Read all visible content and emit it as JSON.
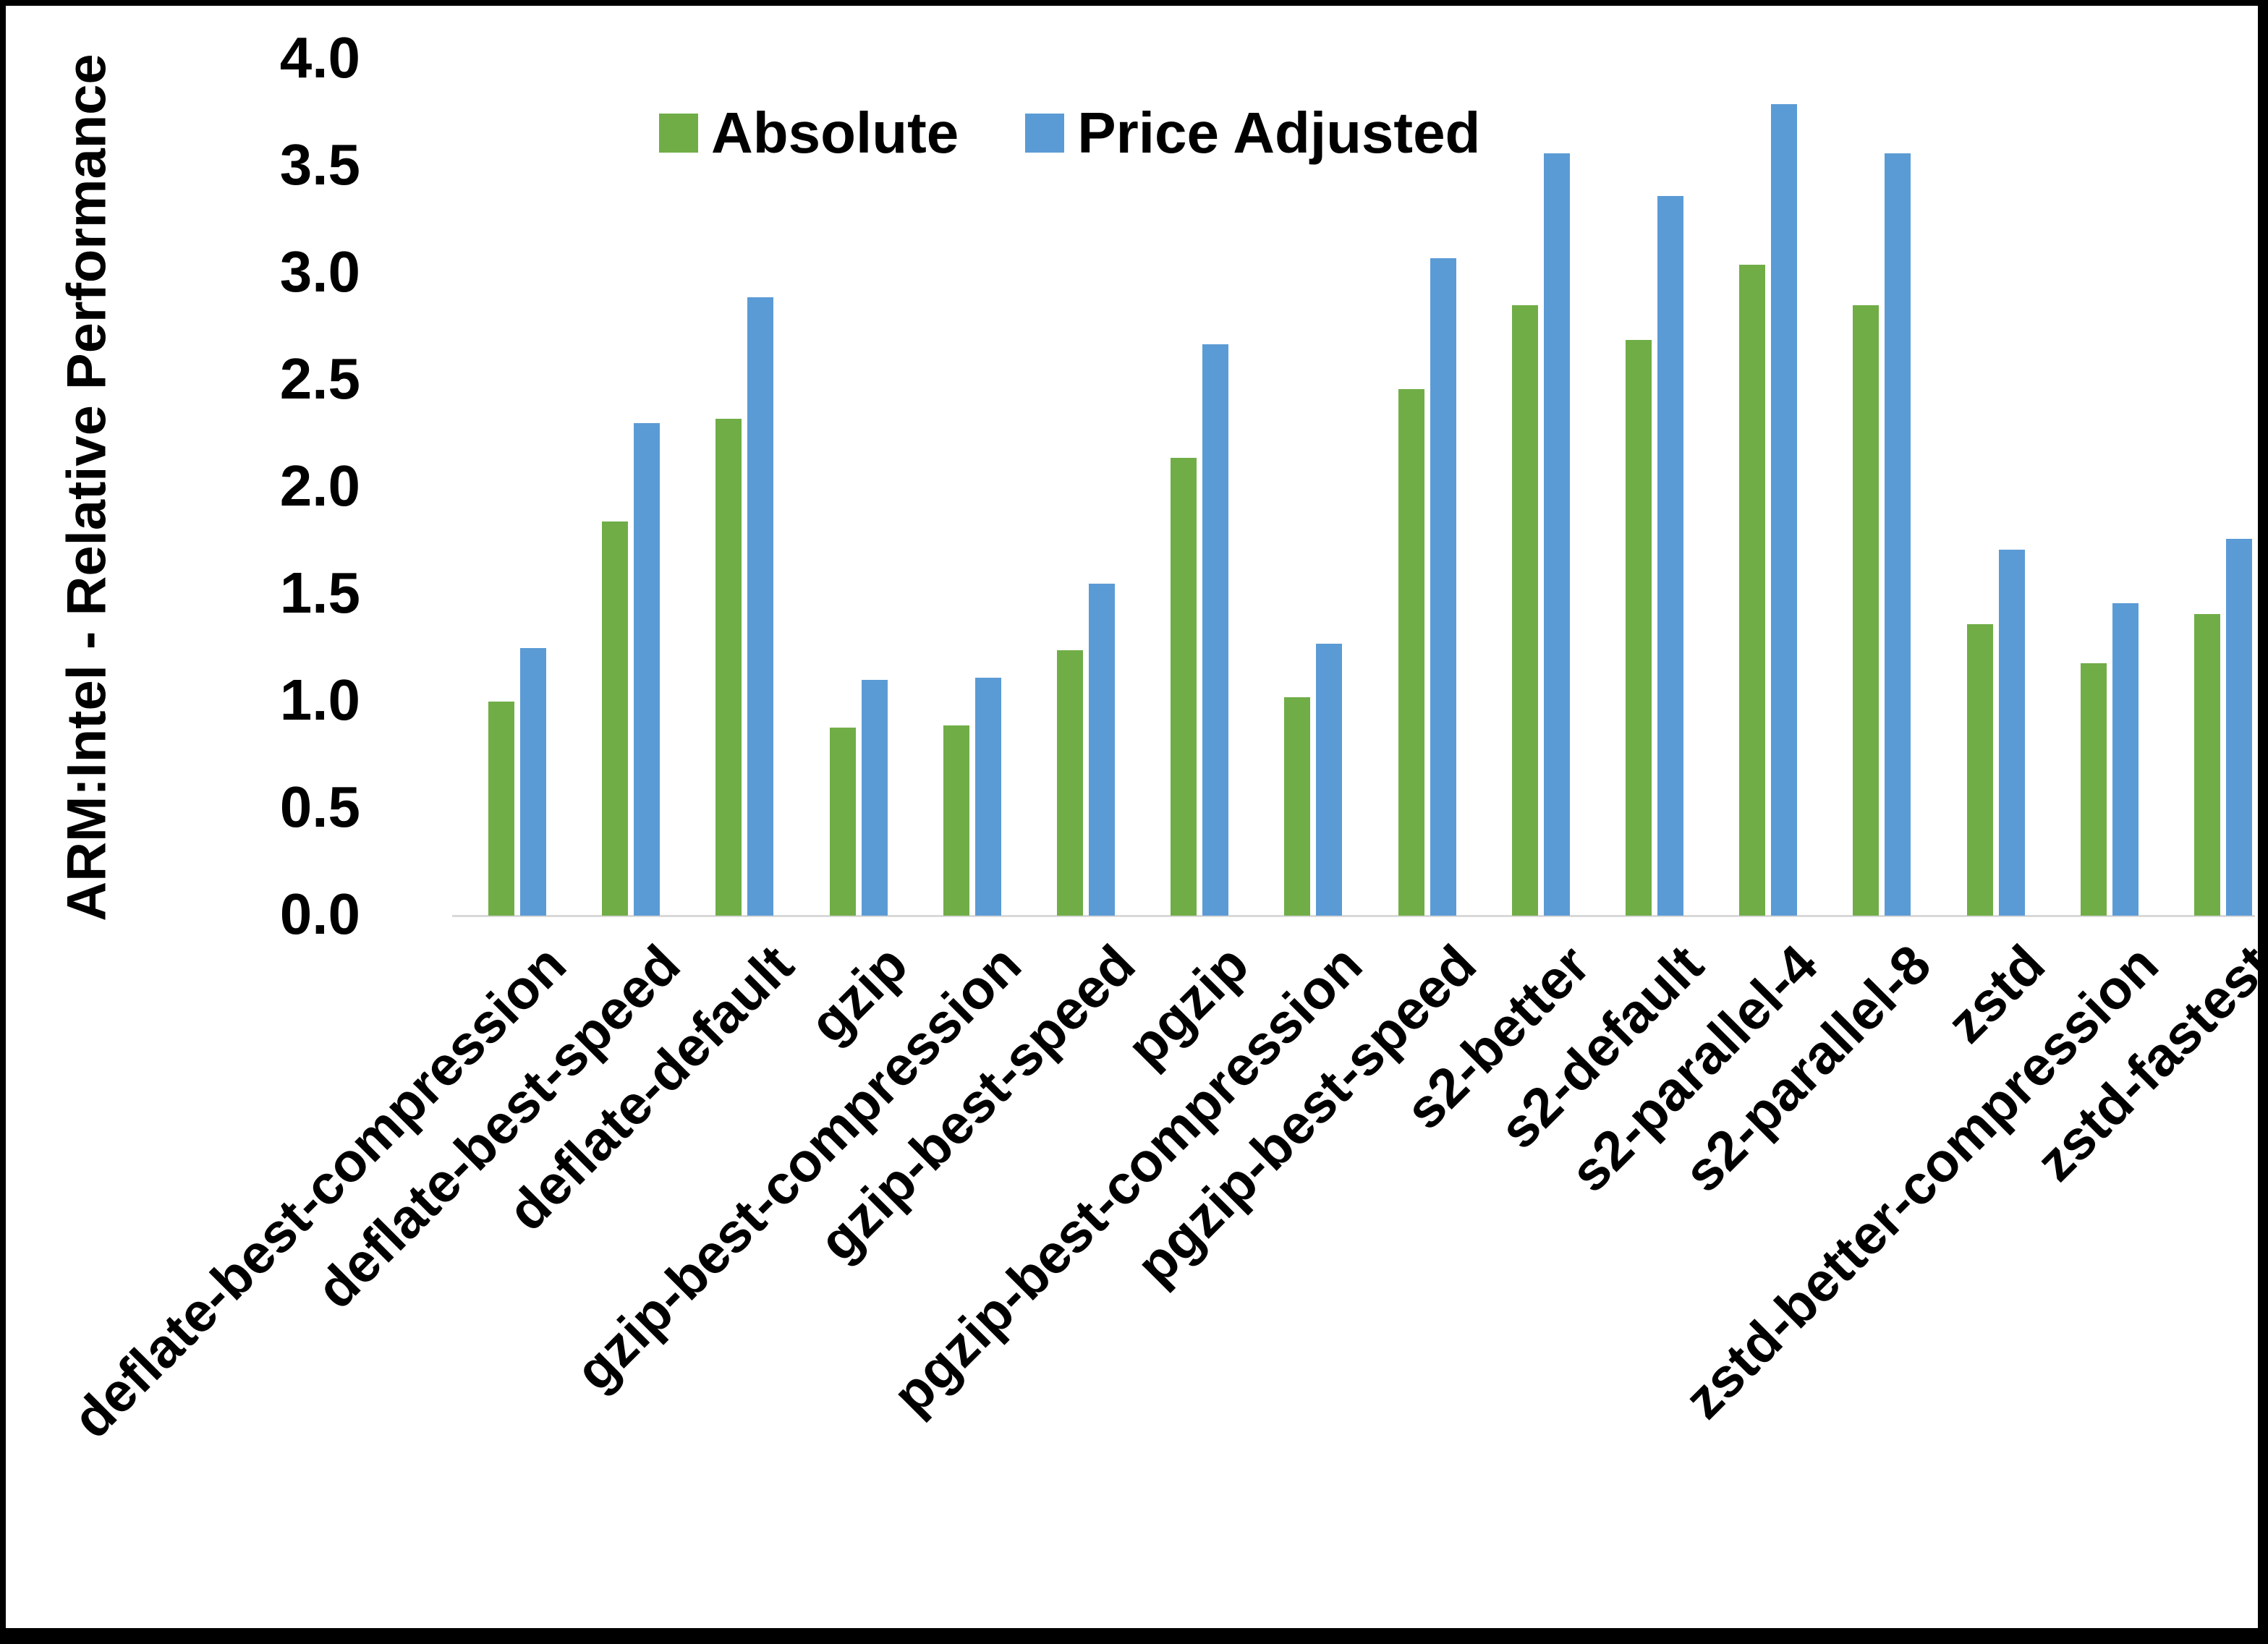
{
  "chart_data": {
    "type": "bar",
    "title": "",
    "xlabel": "",
    "ylabel": "ARM:Intel - Relative Performance",
    "ylim": [
      0.0,
      4.0
    ],
    "ytick_step": 0.5,
    "yticks": [
      "4.0",
      "3.5",
      "3.0",
      "2.5",
      "2.0",
      "1.5",
      "1.0",
      "0.5",
      "0.0"
    ],
    "grid": false,
    "legend_position": "top-inside",
    "categories": [
      "deflate-best-compression",
      "deflate-best-speed",
      "deflate-default",
      "gzip",
      "gzip-best-compression",
      "gzip-best-speed",
      "pgzip",
      "pgzip-best-compression",
      "pgzip-best-speed",
      "s2-better",
      "s2-default",
      "s2-parallel-4",
      "s2-parallel-8",
      "zstd",
      "zstd-better-compression",
      "zstd-fastest"
    ],
    "series": [
      {
        "name": "Absolute",
        "color": "#70AD47",
        "values": [
          1.0,
          1.84,
          2.32,
          0.88,
          0.89,
          1.24,
          2.14,
          1.02,
          2.46,
          2.85,
          2.69,
          3.04,
          2.85,
          1.36,
          1.18,
          1.41
        ]
      },
      {
        "name": "Price Adjusted",
        "color": "#5B9BD5",
        "values": [
          1.25,
          2.3,
          2.89,
          1.1,
          1.11,
          1.55,
          2.67,
          1.27,
          3.07,
          3.56,
          3.36,
          3.79,
          3.56,
          1.71,
          1.46,
          1.76
        ]
      }
    ],
    "axis_line_color": "#D9D9D9",
    "text_color": "#000000"
  }
}
